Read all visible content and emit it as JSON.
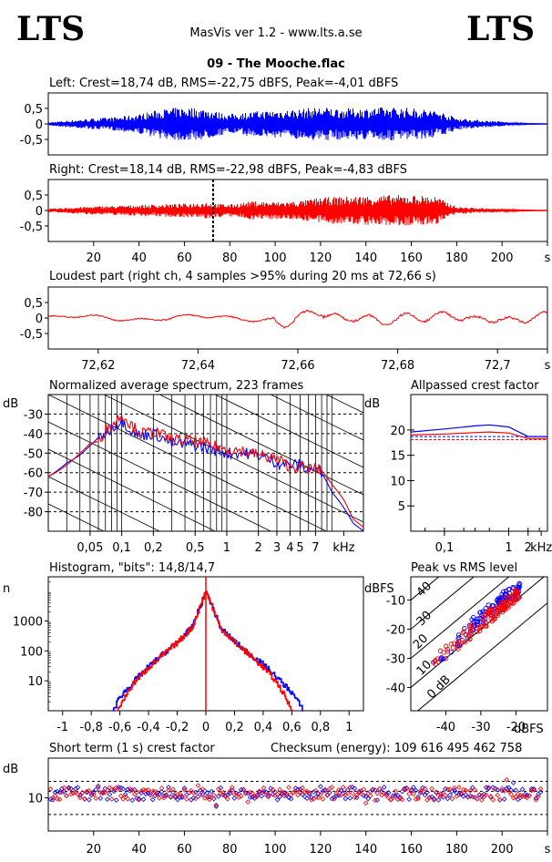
{
  "header": {
    "logo_left": "LTS",
    "logo_right": "LTS",
    "app_title": "MasVis ver 1.2 - www.lts.a.se",
    "file_title": "09 - The Mooche.flac"
  },
  "colors": {
    "left": "#0000ff",
    "right": "#ff0000",
    "axis": "#000000"
  },
  "chart_data": [
    {
      "id": "left-waveform",
      "type": "line",
      "title": "Left: Crest=18,74 dB, RMS=-22,75 dBFS, Peak=-4,01 dBFS",
      "color": "#0000ff",
      "ylim": [
        -1,
        1
      ],
      "yticks": [
        "0,5",
        "0",
        "-0,5"
      ],
      "ytick_values": [
        0.5,
        0,
        -0.5
      ],
      "xlim": [
        0,
        220
      ],
      "envelope": {
        "t": [
          0,
          10,
          20,
          30,
          40,
          50,
          60,
          70,
          75,
          80,
          90,
          100,
          110,
          120,
          130,
          140,
          150,
          160,
          170,
          175,
          180,
          190,
          200,
          205,
          210,
          220
        ],
        "amp": [
          0.05,
          0.12,
          0.18,
          0.22,
          0.32,
          0.48,
          0.55,
          0.5,
          0.38,
          0.32,
          0.4,
          0.45,
          0.48,
          0.55,
          0.5,
          0.52,
          0.55,
          0.52,
          0.45,
          0.35,
          0.2,
          0.12,
          0.08,
          0.04,
          0.02,
          0.0
        ]
      }
    },
    {
      "id": "right-waveform",
      "type": "line",
      "title": "Right: Crest=18,14 dB, RMS=-22,98 dBFS, Peak=-4,83 dBFS",
      "color": "#ff0000",
      "ylim": [
        -1,
        1
      ],
      "yticks": [
        "0,5",
        "0",
        "-0,5"
      ],
      "ytick_values": [
        0.5,
        0,
        -0.5
      ],
      "xlim": [
        0,
        220
      ],
      "xticks": [
        "20",
        "40",
        "60",
        "80",
        "100",
        "120",
        "140",
        "160",
        "180",
        "200",
        "s"
      ],
      "xtick_values": [
        20,
        40,
        60,
        80,
        100,
        120,
        140,
        160,
        180,
        200,
        220
      ],
      "marker_x": 72.66,
      "envelope": {
        "t": [
          0,
          10,
          20,
          30,
          40,
          50,
          60,
          70,
          75,
          80,
          90,
          100,
          110,
          120,
          130,
          140,
          150,
          160,
          170,
          175,
          180,
          190,
          200,
          205,
          210,
          220
        ],
        "amp": [
          0.05,
          0.1,
          0.13,
          0.15,
          0.18,
          0.2,
          0.22,
          0.28,
          0.22,
          0.2,
          0.3,
          0.28,
          0.3,
          0.42,
          0.45,
          0.48,
          0.5,
          0.5,
          0.48,
          0.3,
          0.12,
          0.08,
          0.05,
          0.03,
          0.02,
          0.0
        ]
      }
    },
    {
      "id": "loudest-part",
      "type": "line",
      "title": "Loudest part (right ch, 4 samples >95% during 20 ms at 72,66 s)",
      "color": "#ff0000",
      "ylim": [
        -1,
        1
      ],
      "yticks": [
        "0,5",
        "0",
        "-0,5"
      ],
      "ytick_values": [
        0.5,
        0,
        -0.5
      ],
      "xlim": [
        72.61,
        72.71
      ],
      "xticks": [
        "72,62",
        "72,64",
        "72,66",
        "72,68",
        "72,7",
        "s"
      ],
      "xtick_values": [
        72.62,
        72.64,
        72.66,
        72.68,
        72.7,
        72.71
      ]
    },
    {
      "id": "spectrum",
      "type": "line",
      "title": "Normalized average spectrum, 223 frames",
      "ylabel": "dB",
      "yticks": [
        "-30",
        "-40",
        "-50",
        "-60",
        "-70",
        "-80"
      ],
      "ytick_values": [
        -30,
        -40,
        -50,
        -60,
        -70,
        -80
      ],
      "ylim": [
        -90,
        -20
      ],
      "xscale": "log",
      "xlim": [
        0.02,
        20
      ],
      "xticks": [
        "0,05",
        "0,1",
        "0,2",
        "0,5",
        "1",
        "2",
        "3",
        "4",
        "5",
        "7",
        "kHz"
      ],
      "xtick_values": [
        0.05,
        0.1,
        0.2,
        0.5,
        1,
        2,
        3,
        4,
        5,
        7,
        13
      ],
      "series": [
        {
          "name": "",
          "color": "#0000ff",
          "f": [
            0.02,
            0.03,
            0.04,
            0.05,
            0.06,
            0.07,
            0.08,
            0.1,
            0.12,
            0.15,
            0.2,
            0.3,
            0.5,
            0.7,
            1,
            1.5,
            2,
            3,
            4,
            5,
            6,
            7,
            8,
            10,
            13,
            16,
            20
          ],
          "db": [
            -62,
            -55,
            -51,
            -46,
            -42,
            -40,
            -37,
            -33,
            -38,
            -41,
            -40,
            -45,
            -46,
            -48,
            -50,
            -50,
            -51,
            -55,
            -56,
            -56,
            -59,
            -57,
            -60,
            -70,
            -78,
            -86,
            -90
          ]
        },
        {
          "name": "",
          "color": "#ff0000",
          "f": [
            0.02,
            0.03,
            0.04,
            0.05,
            0.06,
            0.07,
            0.08,
            0.1,
            0.12,
            0.15,
            0.2,
            0.3,
            0.5,
            0.7,
            1,
            1.5,
            2,
            3,
            4,
            5,
            6,
            7,
            8,
            10,
            13,
            16,
            20
          ],
          "db": [
            -62,
            -56,
            -50,
            -45,
            -44,
            -38,
            -36,
            -30,
            -35,
            -40,
            -39,
            -43,
            -44,
            -46,
            -48,
            -49,
            -51,
            -53,
            -57,
            -57,
            -58,
            -58,
            -59,
            -66,
            -74,
            -84,
            -88
          ]
        }
      ]
    },
    {
      "id": "allpassed-crest",
      "type": "line",
      "title": "Allpassed crest factor",
      "ylabel": "dB",
      "yticks": [
        "20",
        "15",
        "10",
        "5"
      ],
      "ytick_values": [
        20,
        15,
        10,
        5
      ],
      "ylim": [
        0,
        27
      ],
      "xscale": "log",
      "xlim": [
        0.03,
        4
      ],
      "xticks": [
        "0,1",
        "1",
        "2",
        "kHz"
      ],
      "xtick_values": [
        0.1,
        1,
        2,
        3.2
      ],
      "series": [
        {
          "name": "",
          "color": "#0000ff",
          "f": [
            0.03,
            0.1,
            0.3,
            0.5,
            1,
            2,
            4
          ],
          "db": [
            19.6,
            20.2,
            20.8,
            21.0,
            20.6,
            18.7,
            18.7
          ]
        },
        {
          "name": "",
          "color": "#ff0000",
          "f": [
            0.03,
            0.1,
            0.3,
            0.5,
            1,
            2,
            4
          ],
          "db": [
            19.0,
            19.2,
            19.5,
            19.6,
            19.4,
            18.3,
            18.3
          ]
        }
      ],
      "dashed": [
        {
          "color": "#0000ff",
          "db": 18.7
        },
        {
          "color": "#ff0000",
          "db": 18.1
        }
      ]
    },
    {
      "id": "histogram",
      "type": "line",
      "title": "Histogram, \"bits\": 14,8/14,7",
      "ylabel": "n",
      "yscale": "log",
      "yticks": [
        "1000",
        "100",
        "10"
      ],
      "ytick_values": [
        1000,
        100,
        10
      ],
      "ylim": [
        1,
        30000
      ],
      "xlim": [
        -1.1,
        1.1
      ],
      "xticks": [
        "-1",
        "-0,8",
        "-0,6",
        "-0,4",
        "-0,2",
        "0",
        "0,2",
        "0,4",
        "0,6",
        "0,8",
        "1"
      ],
      "xtick_values": [
        -1,
        -0.8,
        -0.6,
        -0.4,
        -0.2,
        0,
        0.2,
        0.4,
        0.6,
        0.8,
        1
      ],
      "series": [
        {
          "name": "",
          "color": "#0000ff",
          "x": [
            -0.65,
            -0.6,
            -0.5,
            -0.4,
            -0.3,
            -0.2,
            -0.1,
            0,
            0.1,
            0.2,
            0.3,
            0.4,
            0.5,
            0.6,
            0.68
          ],
          "n": [
            1,
            3,
            10,
            30,
            80,
            200,
            600,
            10000,
            600,
            200,
            80,
            35,
            12,
            4,
            1
          ]
        },
        {
          "name": "",
          "color": "#ff0000",
          "x": [
            -0.62,
            -0.55,
            -0.5,
            -0.4,
            -0.3,
            -0.2,
            -0.1,
            0,
            0.1,
            0.2,
            0.3,
            0.4,
            0.5,
            0.55,
            0.6
          ],
          "n": [
            1,
            4,
            9,
            28,
            75,
            190,
            580,
            10000,
            580,
            190,
            75,
            28,
            8,
            3,
            1
          ]
        }
      ]
    },
    {
      "id": "peak-vs-rms",
      "type": "scatter",
      "title": "Peak vs RMS level",
      "ylabel": "dBFS",
      "xlabel": "dBFS",
      "yticks": [
        "-10",
        "-20",
        "-30",
        "-40"
      ],
      "ytick_values": [
        -10,
        -20,
        -30,
        -40
      ],
      "ylim": [
        -48,
        -2
      ],
      "xticks": [
        "-40",
        "-30",
        "-20"
      ],
      "xtick_values": [
        -40,
        -30,
        -20
      ],
      "xlim": [
        -50,
        -11
      ],
      "diagonals": [
        "40",
        "30",
        "20",
        "10",
        "0 dB"
      ],
      "diagonal_values": [
        40,
        30,
        20,
        10,
        0
      ],
      "series": [
        {
          "name": "",
          "color": "#0000ff",
          "rms": [
            -45,
            -43,
            -40,
            -37,
            -35,
            -33,
            -32,
            -31,
            -30,
            -29,
            -28,
            -27,
            -26,
            -25,
            -24,
            -23,
            -22,
            -21,
            -20,
            -19
          ],
          "peak": [
            -36,
            -32,
            -28,
            -24,
            -22,
            -20,
            -18,
            -17,
            -16,
            -15,
            -14,
            -13,
            -12,
            -11,
            -10,
            -9,
            -8.5,
            -8,
            -7,
            -6.5
          ]
        },
        {
          "name": "",
          "color": "#ff0000",
          "rms": [
            -46,
            -44,
            -41,
            -38,
            -36,
            -34,
            -33,
            -31,
            -30,
            -29,
            -28,
            -27,
            -26,
            -25,
            -24,
            -23,
            -22,
            -21,
            -20,
            -19
          ],
          "peak": [
            -39,
            -34,
            -29,
            -26,
            -24,
            -22,
            -21,
            -19,
            -18,
            -17,
            -16,
            -15,
            -14,
            -13,
            -12,
            -11,
            -10,
            -9,
            -8.5,
            -8
          ]
        }
      ]
    },
    {
      "id": "short-term-crest",
      "type": "scatter",
      "title": "Short term (1 s) crest factor",
      "checksum": "Checksum (energy):   109 616 495 462 758",
      "ylabel": "dB",
      "yticks": [
        "10"
      ],
      "ytick_values": [
        10
      ],
      "ylim": [
        0,
        22
      ],
      "dashed_levels": [
        15,
        12,
        5
      ],
      "xlim": [
        0,
        220
      ],
      "xticks": [
        "20",
        "40",
        "60",
        "80",
        "100",
        "120",
        "140",
        "160",
        "180",
        "200",
        "s"
      ],
      "xtick_values": [
        20,
        40,
        60,
        80,
        100,
        120,
        140,
        160,
        180,
        200,
        220
      ],
      "series": [
        {
          "name": "",
          "color": "#0000ff",
          "mean_db": 11,
          "spread": 2
        },
        {
          "name": "",
          "color": "#ff0000",
          "mean_db": 11,
          "spread": 2
        }
      ]
    }
  ]
}
